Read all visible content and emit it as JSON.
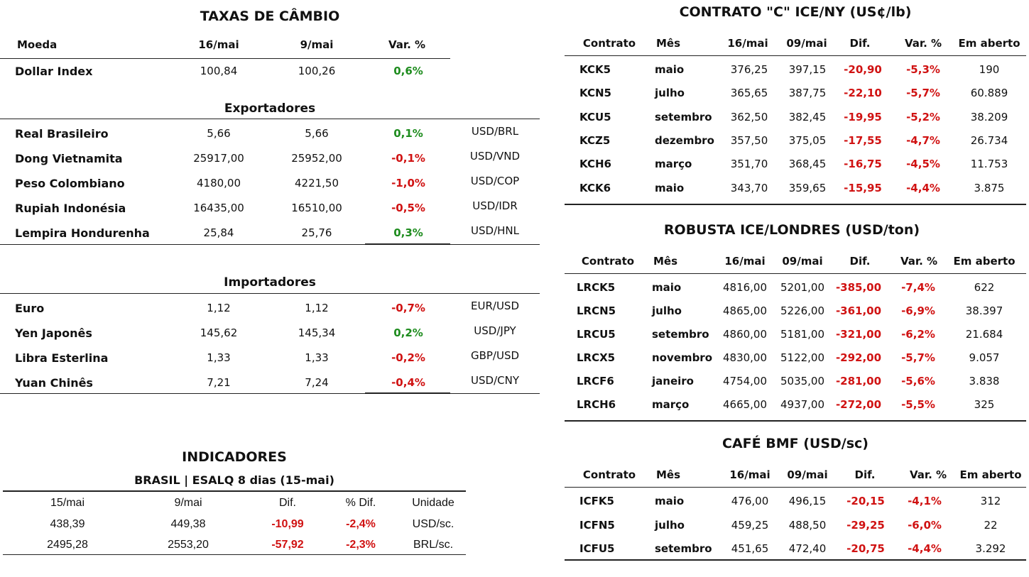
{
  "cambio": {
    "title": "TAXAS DE CÂMBIO",
    "headers": [
      "Moeda",
      "16/mai",
      "9/mai",
      "Var. %"
    ],
    "dollar_index": {
      "name": "Dollar Index",
      "v1": "100,84",
      "v2": "100,26",
      "var": "0,6%",
      "sign": "pos"
    },
    "exportadores_title": "Exportadores",
    "exportadores": [
      {
        "name": "Real Brasileiro",
        "v1": "5,66",
        "v2": "5,66",
        "var": "0,1%",
        "sign": "pos",
        "pair": "USD/BRL"
      },
      {
        "name": "Dong Vietnamita",
        "v1": "25917,00",
        "v2": "25952,00",
        "var": "-0,1%",
        "sign": "neg",
        "pair": "USD/VND"
      },
      {
        "name": "Peso Colombiano",
        "v1": "4180,00",
        "v2": "4221,50",
        "var": "-1,0%",
        "sign": "neg",
        "pair": "USD/COP"
      },
      {
        "name": "Rupiah Indonésia",
        "v1": "16435,00",
        "v2": "16510,00",
        "var": "-0,5%",
        "sign": "neg",
        "pair": "USD/IDR"
      },
      {
        "name": "Lempira Hondurenha",
        "v1": "25,84",
        "v2": "25,76",
        "var": "0,3%",
        "sign": "pos",
        "pair": "USD/HNL"
      }
    ],
    "importadores_title": "Importadores",
    "importadores": [
      {
        "name": "Euro",
        "v1": "1,12",
        "v2": "1,12",
        "var": "-0,7%",
        "sign": "neg",
        "pair": "EUR/USD"
      },
      {
        "name": "Yen Japonês",
        "v1": "145,62",
        "v2": "145,34",
        "var": "0,2%",
        "sign": "pos",
        "pair": "USD/JPY"
      },
      {
        "name": "Libra Esterlina",
        "v1": "1,33",
        "v2": "1,33",
        "var": "-0,2%",
        "sign": "neg",
        "pair": "GBP/USD"
      },
      {
        "name": "Yuan Chinês",
        "v1": "7,21",
        "v2": "7,24",
        "var": "-0,4%",
        "sign": "neg",
        "pair": "USD/CNY"
      }
    ]
  },
  "indicadores": {
    "title": "INDICADORES",
    "subtitle": "BRASIL | ESALQ 8 dias (15-mai)",
    "headers": [
      "15/mai",
      "9/mai",
      "Dif.",
      "% Dif.",
      "Unidade"
    ],
    "rows": [
      {
        "v1": "438,39",
        "v2": "449,38",
        "dif": "-10,99",
        "pdif": "-2,4%",
        "unit": "USD/sc."
      },
      {
        "v1": "2495,28",
        "v2": "2553,20",
        "dif": "-57,92",
        "pdif": "-2,3%",
        "unit": "BRL/sc."
      }
    ]
  },
  "contrato_c": {
    "title": "CONTRATO \"C\" ICE/NY (US¢/lb)",
    "headers": [
      "Contrato",
      "Mês",
      "16/mai",
      "09/mai",
      "Dif.",
      "Var. %",
      "Em aberto"
    ],
    "rows": [
      {
        "code": "KCK5",
        "mes": "maio",
        "v1": "376,25",
        "v2": "397,15",
        "dif": "-20,90",
        "var": "-5,3%",
        "open": "190"
      },
      {
        "code": "KCN5",
        "mes": "julho",
        "v1": "365,65",
        "v2": "387,75",
        "dif": "-22,10",
        "var": "-5,7%",
        "open": "60.889"
      },
      {
        "code": "KCU5",
        "mes": "setembro",
        "v1": "362,50",
        "v2": "382,45",
        "dif": "-19,95",
        "var": "-5,2%",
        "open": "38.209"
      },
      {
        "code": "KCZ5",
        "mes": "dezembro",
        "v1": "357,50",
        "v2": "375,05",
        "dif": "-17,55",
        "var": "-4,7%",
        "open": "26.734"
      },
      {
        "code": "KCH6",
        "mes": "março",
        "v1": "351,70",
        "v2": "368,45",
        "dif": "-16,75",
        "var": "-4,5%",
        "open": "11.753"
      },
      {
        "code": "KCK6",
        "mes": "maio",
        "v1": "343,70",
        "v2": "359,65",
        "dif": "-15,95",
        "var": "-4,4%",
        "open": "3.875"
      }
    ]
  },
  "robusta": {
    "title": "ROBUSTA ICE/LONDRES (USD/ton)",
    "headers": [
      "Contrato",
      "Mês",
      "16/mai",
      "09/mai",
      "Dif.",
      "Var. %",
      "Em aberto"
    ],
    "rows": [
      {
        "code": "LRCK5",
        "mes": "maio",
        "v1": "4816,00",
        "v2": "5201,00",
        "dif": "-385,00",
        "var": "-7,4%",
        "open": "622"
      },
      {
        "code": "LRCN5",
        "mes": "julho",
        "v1": "4865,00",
        "v2": "5226,00",
        "dif": "-361,00",
        "var": "-6,9%",
        "open": "38.397"
      },
      {
        "code": "LRCU5",
        "mes": "setembro",
        "v1": "4860,00",
        "v2": "5181,00",
        "dif": "-321,00",
        "var": "-6,2%",
        "open": "21.684"
      },
      {
        "code": "LRCX5",
        "mes": "novembro",
        "v1": "4830,00",
        "v2": "5122,00",
        "dif": "-292,00",
        "var": "-5,7%",
        "open": "9.057"
      },
      {
        "code": "LRCF6",
        "mes": "janeiro",
        "v1": "4754,00",
        "v2": "5035,00",
        "dif": "-281,00",
        "var": "-5,6%",
        "open": "3.838"
      },
      {
        "code": "LRCH6",
        "mes": "março",
        "v1": "4665,00",
        "v2": "4937,00",
        "dif": "-272,00",
        "var": "-5,5%",
        "open": "325"
      }
    ]
  },
  "bmf": {
    "title": "CAFÉ BMF (USD/sc)",
    "headers": [
      "Contrato",
      "Mês",
      "16/mai",
      "09/mai",
      "Dif.",
      "Var. %",
      "Em aberto"
    ],
    "rows": [
      {
        "code": "ICFK5",
        "mes": "maio",
        "v1": "476,00",
        "v2": "496,15",
        "dif": "-20,15",
        "var": "-4,1%",
        "open": "312"
      },
      {
        "code": "ICFN5",
        "mes": "julho",
        "v1": "459,25",
        "v2": "488,50",
        "dif": "-29,25",
        "var": "-6,0%",
        "open": "22"
      },
      {
        "code": "ICFU5",
        "mes": "setembro",
        "v1": "451,65",
        "v2": "472,40",
        "dif": "-20,75",
        "var": "-4,4%",
        "open": "3.292"
      }
    ]
  }
}
